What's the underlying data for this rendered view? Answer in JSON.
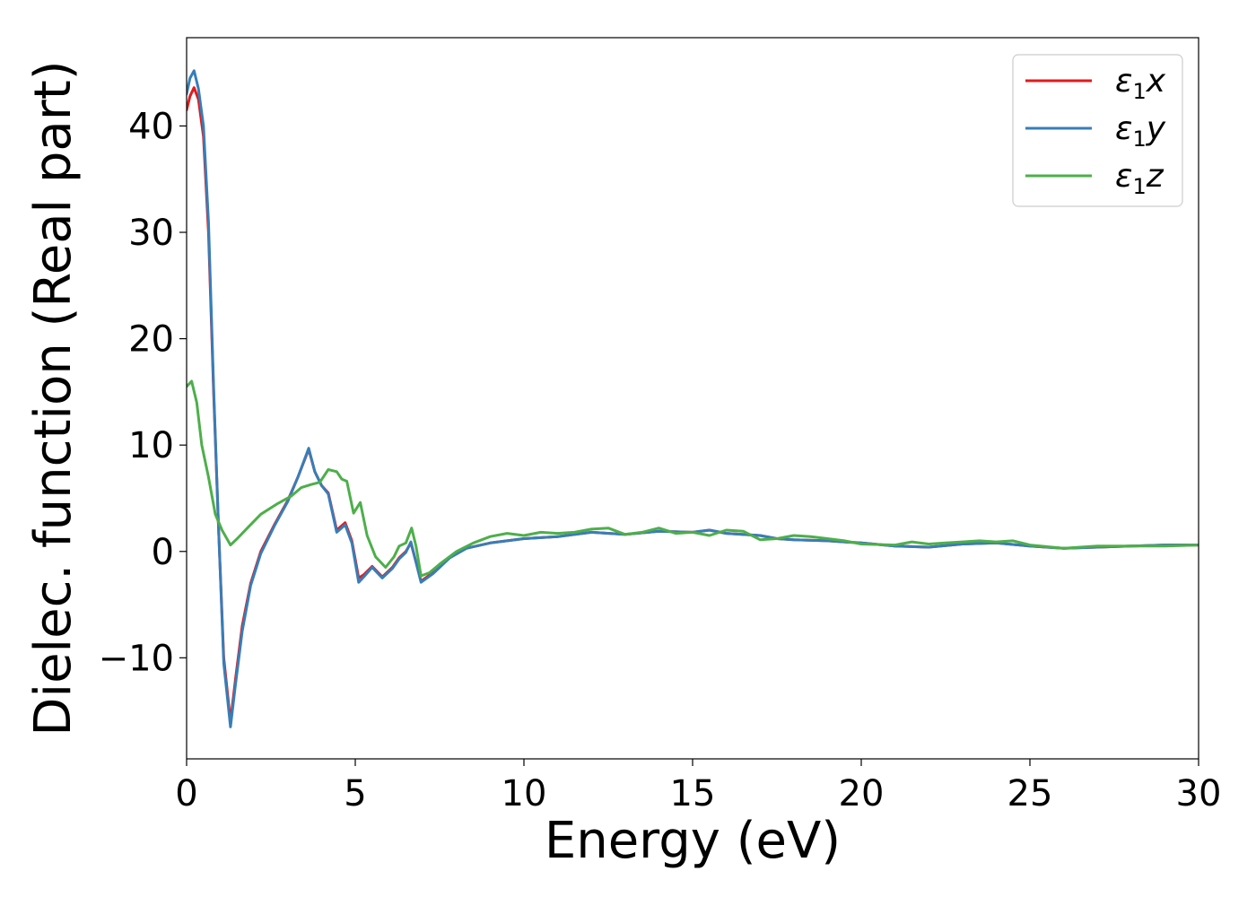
{
  "chart_data": {
    "type": "line",
    "title": "",
    "xlabel": "Energy (eV)",
    "ylabel": "Dielec. function (Real part)",
    "xlim": [
      0,
      30
    ],
    "ylim": [
      -19.5,
      48.3
    ],
    "x_ticks": [
      0,
      5,
      10,
      15,
      20,
      25,
      30
    ],
    "x_tick_labels": [
      "0",
      "5",
      "10",
      "15",
      "20",
      "25",
      "30"
    ],
    "y_ticks": [
      -10,
      0,
      10,
      20,
      30,
      40
    ],
    "y_tick_labels": [
      "−10",
      "0",
      "10",
      "20",
      "30",
      "40"
    ],
    "grid": false,
    "legend_position": "top-right",
    "series": [
      {
        "name": "ε₁x",
        "legend_label": {
          "main": "ε",
          "sub": "1",
          "suffix": "x"
        },
        "color": "#e41a1c",
        "points": [
          [
            0,
            41.5
          ],
          [
            0.1,
            42.8
          ],
          [
            0.22,
            43.6
          ],
          [
            0.35,
            42.5
          ],
          [
            0.5,
            39
          ],
          [
            0.65,
            30
          ],
          [
            0.8,
            15
          ],
          [
            0.95,
            2
          ],
          [
            1.1,
            -10
          ],
          [
            1.3,
            -16
          ],
          [
            1.45,
            -12
          ],
          [
            1.65,
            -7
          ],
          [
            1.9,
            -3
          ],
          [
            2.2,
            0
          ],
          [
            2.6,
            2.5
          ],
          [
            3.0,
            4.8
          ],
          [
            3.3,
            7
          ],
          [
            3.62,
            9.6
          ],
          [
            3.8,
            7.5
          ],
          [
            4.0,
            6.2
          ],
          [
            4.2,
            5.5
          ],
          [
            4.45,
            2
          ],
          [
            4.7,
            2.7
          ],
          [
            4.9,
            1
          ],
          [
            5.1,
            -2.5
          ],
          [
            5.25,
            -2.2
          ],
          [
            5.5,
            -1.4
          ],
          [
            5.8,
            -2.4
          ],
          [
            6.1,
            -1.5
          ],
          [
            6.3,
            -0.6
          ],
          [
            6.5,
            0
          ],
          [
            6.65,
            0.8
          ],
          [
            6.8,
            -1
          ],
          [
            6.95,
            -2.8
          ],
          [
            7.3,
            -2
          ],
          [
            7.8,
            -0.5
          ],
          [
            8.3,
            0.3
          ],
          [
            9,
            0.8
          ],
          [
            10,
            1.2
          ],
          [
            11,
            1.4
          ],
          [
            12,
            1.8
          ],
          [
            13,
            1.6
          ],
          [
            14,
            1.9
          ],
          [
            15,
            1.8
          ],
          [
            15.5,
            2.0
          ],
          [
            16,
            1.7
          ],
          [
            17,
            1.5
          ],
          [
            17.5,
            1.2
          ],
          [
            18,
            1.1
          ],
          [
            19,
            1.0
          ],
          [
            19.5,
            0.9
          ],
          [
            20,
            0.8
          ],
          [
            21,
            0.5
          ],
          [
            22,
            0.4
          ],
          [
            23,
            0.7
          ],
          [
            24,
            0.8
          ],
          [
            25,
            0.5
          ],
          [
            26,
            0.3
          ],
          [
            27,
            0.4
          ],
          [
            28,
            0.5
          ],
          [
            29,
            0.6
          ],
          [
            30,
            0.6
          ]
        ]
      },
      {
        "name": "ε₁y",
        "legend_label": {
          "main": "ε",
          "sub": "1",
          "suffix": "y"
        },
        "color": "#377eb8",
        "points": [
          [
            0,
            43
          ],
          [
            0.1,
            44.5
          ],
          [
            0.22,
            45.2
          ],
          [
            0.35,
            43.5
          ],
          [
            0.5,
            40
          ],
          [
            0.65,
            31
          ],
          [
            0.8,
            15.5
          ],
          [
            0.95,
            2
          ],
          [
            1.1,
            -10.5
          ],
          [
            1.3,
            -16.5
          ],
          [
            1.45,
            -12.5
          ],
          [
            1.65,
            -7.5
          ],
          [
            1.9,
            -3.2
          ],
          [
            2.2,
            -0.2
          ],
          [
            2.6,
            2.4
          ],
          [
            3.0,
            4.7
          ],
          [
            3.3,
            7
          ],
          [
            3.62,
            9.7
          ],
          [
            3.8,
            7.5
          ],
          [
            4.0,
            6.2
          ],
          [
            4.2,
            5.4
          ],
          [
            4.45,
            1.8
          ],
          [
            4.7,
            2.5
          ],
          [
            4.9,
            0.8
          ],
          [
            5.1,
            -2.9
          ],
          [
            5.25,
            -2.4
          ],
          [
            5.5,
            -1.5
          ],
          [
            5.8,
            -2.5
          ],
          [
            6.1,
            -1.6
          ],
          [
            6.3,
            -0.7
          ],
          [
            6.5,
            -0.1
          ],
          [
            6.65,
            0.9
          ],
          [
            6.8,
            -1
          ],
          [
            6.95,
            -2.9
          ],
          [
            7.3,
            -2.1
          ],
          [
            7.8,
            -0.6
          ],
          [
            8.3,
            0.3
          ],
          [
            9,
            0.8
          ],
          [
            10,
            1.2
          ],
          [
            11,
            1.4
          ],
          [
            12,
            1.8
          ],
          [
            13,
            1.6
          ],
          [
            14,
            1.9
          ],
          [
            15,
            1.8
          ],
          [
            15.5,
            2.0
          ],
          [
            16,
            1.7
          ],
          [
            17,
            1.5
          ],
          [
            17.5,
            1.2
          ],
          [
            18,
            1.1
          ],
          [
            19,
            1.0
          ],
          [
            19.5,
            0.9
          ],
          [
            20,
            0.8
          ],
          [
            21,
            0.5
          ],
          [
            22,
            0.4
          ],
          [
            23,
            0.7
          ],
          [
            24,
            0.8
          ],
          [
            25,
            0.5
          ],
          [
            26,
            0.3
          ],
          [
            27,
            0.4
          ],
          [
            28,
            0.5
          ],
          [
            29,
            0.6
          ],
          [
            30,
            0.6
          ]
        ]
      },
      {
        "name": "ε₁z",
        "legend_label": {
          "main": "ε",
          "sub": "1",
          "suffix": "z"
        },
        "color": "#4daf4a",
        "points": [
          [
            0,
            15.5
          ],
          [
            0.15,
            16
          ],
          [
            0.3,
            14
          ],
          [
            0.45,
            10
          ],
          [
            0.65,
            7
          ],
          [
            0.85,
            3.5
          ],
          [
            1.05,
            2
          ],
          [
            1.3,
            0.6
          ],
          [
            1.5,
            1.2
          ],
          [
            1.8,
            2.2
          ],
          [
            2.2,
            3.5
          ],
          [
            2.7,
            4.5
          ],
          [
            3.1,
            5.2
          ],
          [
            3.4,
            6
          ],
          [
            3.7,
            6.3
          ],
          [
            3.95,
            6.5
          ],
          [
            4.2,
            7.7
          ],
          [
            4.45,
            7.5
          ],
          [
            4.6,
            6.8
          ],
          [
            4.75,
            6.6
          ],
          [
            4.95,
            3.6
          ],
          [
            5.15,
            4.6
          ],
          [
            5.35,
            1.5
          ],
          [
            5.6,
            -0.5
          ],
          [
            5.9,
            -1.5
          ],
          [
            6.15,
            -0.5
          ],
          [
            6.3,
            0.5
          ],
          [
            6.5,
            0.8
          ],
          [
            6.67,
            2.2
          ],
          [
            6.8,
            0.5
          ],
          [
            6.95,
            -2.3
          ],
          [
            7.2,
            -2.0
          ],
          [
            7.5,
            -1.2
          ],
          [
            8.0,
            0
          ],
          [
            8.5,
            0.8
          ],
          [
            9,
            1.4
          ],
          [
            9.5,
            1.7
          ],
          [
            10,
            1.5
          ],
          [
            10.5,
            1.8
          ],
          [
            11,
            1.7
          ],
          [
            11.5,
            1.8
          ],
          [
            12,
            2.1
          ],
          [
            12.5,
            2.2
          ],
          [
            13,
            1.6
          ],
          [
            13.5,
            1.8
          ],
          [
            14,
            2.2
          ],
          [
            14.5,
            1.7
          ],
          [
            15,
            1.8
          ],
          [
            15.5,
            1.5
          ],
          [
            16,
            2.0
          ],
          [
            16.5,
            1.9
          ],
          [
            17,
            1.1
          ],
          [
            17.5,
            1.2
          ],
          [
            18,
            1.5
          ],
          [
            18.5,
            1.4
          ],
          [
            19,
            1.2
          ],
          [
            19.5,
            1.0
          ],
          [
            20,
            0.7
          ],
          [
            21,
            0.6
          ],
          [
            21.5,
            0.9
          ],
          [
            22,
            0.7
          ],
          [
            22.5,
            0.8
          ],
          [
            23,
            0.9
          ],
          [
            23.5,
            1.0
          ],
          [
            24,
            0.9
          ],
          [
            24.5,
            1.0
          ],
          [
            25,
            0.6
          ],
          [
            26,
            0.3
          ],
          [
            27,
            0.5
          ],
          [
            28,
            0.5
          ],
          [
            29,
            0.5
          ],
          [
            30,
            0.6
          ]
        ]
      }
    ]
  }
}
